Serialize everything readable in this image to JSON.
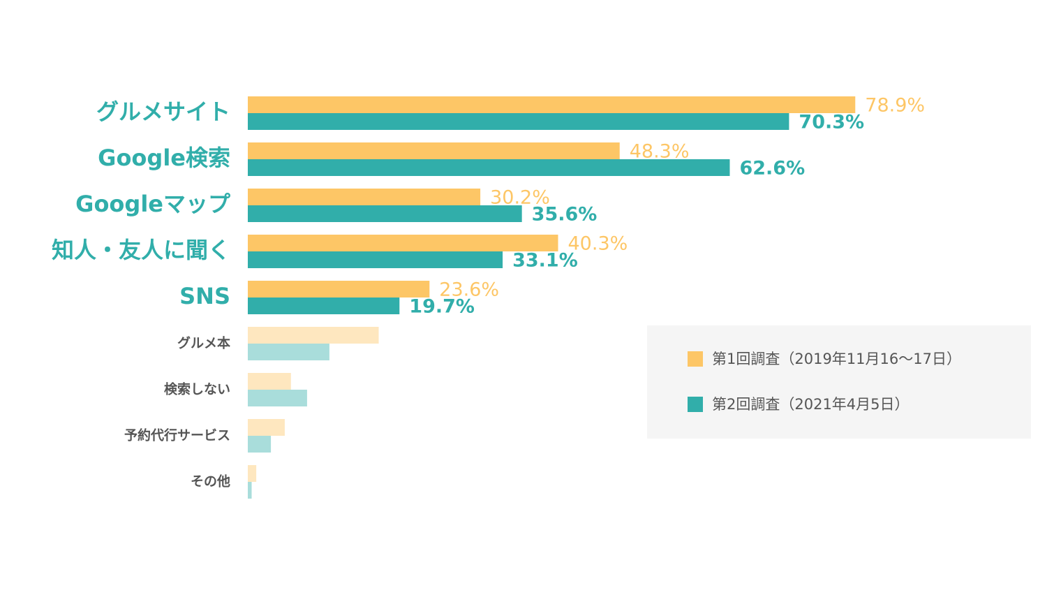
{
  "chart_data": {
    "type": "bar",
    "categories": [
      "グルメサイト",
      "Google検索",
      "Googleマップ",
      "知人・友人に聞く",
      "SNS",
      "グルメ本",
      "検索しない",
      "予約代行サービス",
      "その他"
    ],
    "series": [
      {
        "name": "第1回調査（2019年11月16〜17日）",
        "color": "#fdc666",
        "values": [
          78.9,
          48.3,
          30.2,
          40.3,
          23.6,
          17.0,
          5.6,
          4.8,
          1.1
        ],
        "value_labels": [
          "78.9%",
          "48.3%",
          "30.2%",
          "40.3%",
          "23.6%",
          null,
          null,
          null,
          null
        ]
      },
      {
        "name": "第2回調査（2021年4月5日）",
        "color": "#31aeaa",
        "values": [
          70.3,
          62.6,
          35.6,
          33.1,
          19.7,
          10.6,
          7.7,
          3.0,
          0.5
        ],
        "value_labels": [
          "70.3%",
          "62.6%",
          "35.6%",
          "33.1%",
          "19.7%",
          null,
          null,
          null,
          null
        ]
      }
    ]
  }
}
